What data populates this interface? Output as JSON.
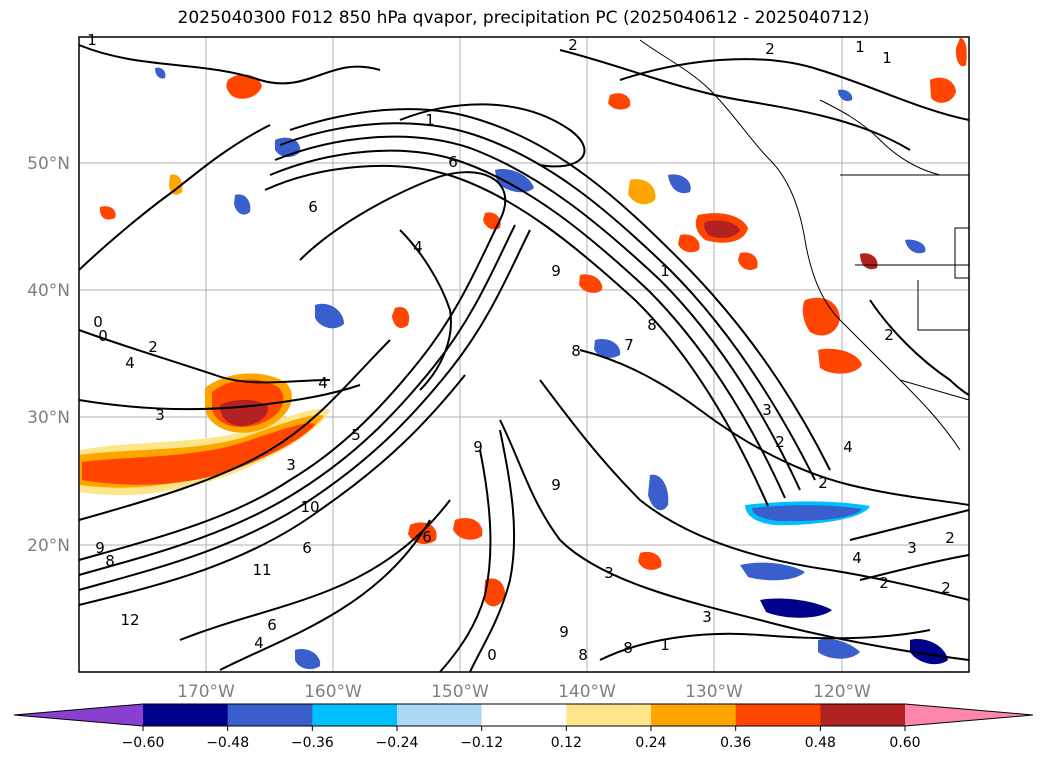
{
  "title": "2025040300 F012 850 hPa qvapor, precipitation PC (2025040612 - 2025040712)",
  "lat_labels": [
    "50°N",
    "40°N",
    "30°N",
    "20°N"
  ],
  "lon_labels": [
    "170°W",
    "160°W",
    "150°W",
    "140°W",
    "130°W",
    "120°W"
  ],
  "colorbar": {
    "tick_labels": [
      "−0.60",
      "−0.48",
      "−0.36",
      "−0.24",
      "−0.12",
      "0.12",
      "0.24",
      "0.36",
      "0.48",
      "0.60"
    ],
    "colors": [
      "#8a3fd1",
      "#00008b",
      "#3a5fcd",
      "#00bfff",
      "#add8f7",
      "#ffffff",
      "#fde68a",
      "#ffa500",
      "#ff4500",
      "#b22222",
      "#ff88aa"
    ]
  },
  "contour_labels": [
    "1",
    "2",
    "2",
    "1",
    "1",
    "1",
    "6",
    "6",
    "4",
    "9",
    "1",
    "8",
    "7",
    "0",
    "0",
    "2",
    "4",
    "3",
    "4",
    "5",
    "3",
    "2",
    "4",
    "3",
    "2",
    "2",
    "8",
    "9",
    "10",
    "11",
    "9",
    "8",
    "6",
    "12",
    "8",
    "3",
    "3",
    "3",
    "2",
    "2",
    "2",
    "4",
    "9",
    "8",
    "0",
    "6",
    "4",
    "1",
    "9",
    "6"
  ],
  "map_colors": {
    "frame": "#000000",
    "grid": "#b0b0b0",
    "contour": "#000000",
    "coast": "#000000",
    "pos_low": "#fde68a",
    "pos_mid": "#ffa500",
    "pos_high": "#ff4500",
    "pos_max": "#b22222",
    "neg_low": "#add8f7",
    "neg_mid": "#3a5fcd",
    "neg_high": "#00008b"
  }
}
